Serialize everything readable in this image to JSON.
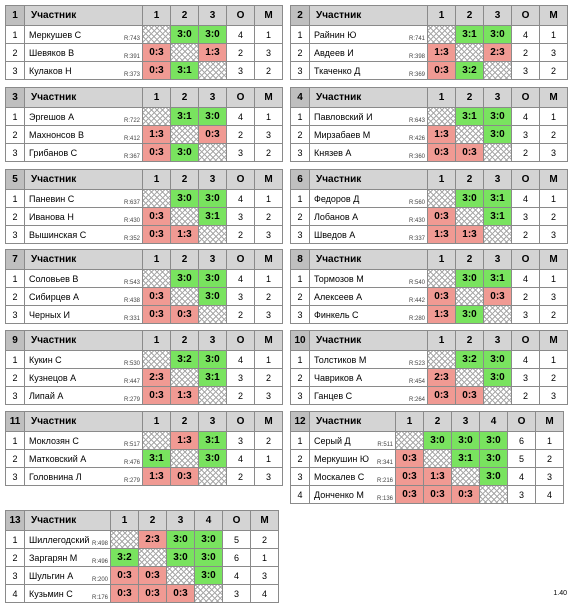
{
  "version": "1.40",
  "groups": [
    {
      "num": "1",
      "header": {
        "title": "Участник",
        "col1": "1",
        "col2": "2",
        "col3": "3",
        "col_o": "О",
        "col_m": "М"
      },
      "rows": [
        {
          "idx": "1",
          "name": "Меркушев С",
          "rating": "R:743",
          "c1": "",
          "c2": "3:0",
          "c3": "3:0",
          "o": "4",
          "m": "1"
        },
        {
          "idx": "2",
          "name": "Шевяков В",
          "rating": "R:391",
          "c1": "0:3",
          "c2": "",
          "c3": "1:3",
          "o": "2",
          "m": "3"
        },
        {
          "idx": "3",
          "name": "Кулаков Н",
          "rating": "R:373",
          "c1": "0:3",
          "c2": "3:1",
          "c3": "",
          "o": "3",
          "m": "2"
        }
      ]
    },
    {
      "num": "2",
      "header": {
        "title": "Участник",
        "col1": "1",
        "col2": "2",
        "col3": "3",
        "col_o": "О",
        "col_m": "М"
      },
      "rows": [
        {
          "idx": "1",
          "name": "Райнин Ю",
          "rating": "R:741",
          "c1": "",
          "c2": "3:1",
          "c3": "3:0",
          "o": "4",
          "m": "1"
        },
        {
          "idx": "2",
          "name": "Авдеев И",
          "rating": "R:398",
          "c1": "1:3",
          "c2": "",
          "c3": "2:3",
          "o": "2",
          "m": "3"
        },
        {
          "idx": "3",
          "name": "Ткаченко Д",
          "rating": "R:369",
          "c1": "0:3",
          "c2": "3:2",
          "c3": "",
          "o": "3",
          "m": "2"
        }
      ]
    },
    {
      "num": "3",
      "header": {
        "title": "Участник",
        "col1": "1",
        "col2": "2",
        "col3": "3",
        "col_o": "О",
        "col_m": "М"
      },
      "rows": [
        {
          "idx": "1",
          "name": "Эргешов А",
          "rating": "R:722",
          "c1": "",
          "c2": "3:1",
          "c3": "3:0",
          "o": "4",
          "m": "1"
        },
        {
          "idx": "2",
          "name": "Махнонсов В",
          "rating": "R:412",
          "c1": "1:3",
          "c2": "",
          "c3": "0:3",
          "o": "2",
          "m": "3"
        },
        {
          "idx": "3",
          "name": "Грибанов С",
          "rating": "R:367",
          "c1": "0:3",
          "c2": "3:0",
          "c3": "",
          "o": "3",
          "m": "2"
        }
      ]
    },
    {
      "num": "4",
      "header": {
        "title": "Участник",
        "col1": "1",
        "col2": "2",
        "col3": "3",
        "col_o": "О",
        "col_m": "М"
      },
      "rows": [
        {
          "idx": "1",
          "name": "Павловский И",
          "rating": "R:643",
          "c1": "",
          "c2": "3:1",
          "c3": "3:0",
          "o": "4",
          "m": "1"
        },
        {
          "idx": "2",
          "name": "Мирзабаев М",
          "rating": "R:426",
          "c1": "1:3",
          "c2": "",
          "c3": "3:0",
          "o": "3",
          "m": "2"
        },
        {
          "idx": "3",
          "name": "Князев А",
          "rating": "R:360",
          "c1": "0:3",
          "c2": "0:3",
          "c3": "",
          "o": "2",
          "m": "3"
        }
      ]
    },
    {
      "num": "5",
      "header": {
        "title": "Участник",
        "col1": "1",
        "col2": "2",
        "col3": "3",
        "col_o": "О",
        "col_m": "М"
      },
      "rows": [
        {
          "idx": "1",
          "name": "Паневин С",
          "rating": "R:637",
          "c1": "",
          "c2": "3:0",
          "c3": "3:0",
          "o": "4",
          "m": "1"
        },
        {
          "idx": "2",
          "name": "Иванова Н",
          "rating": "R:430",
          "c1": "0:3",
          "c2": "",
          "c3": "3:1",
          "o": "3",
          "m": "2"
        },
        {
          "idx": "3",
          "name": "Вышинская С",
          "rating": "R:352",
          "c1": "0:3",
          "c2": "1:3",
          "c3": "",
          "o": "2",
          "m": "3"
        }
      ]
    },
    {
      "num": "6",
      "header": {
        "title": "Участник",
        "col1": "1",
        "col2": "2",
        "col3": "3",
        "col_o": "О",
        "col_m": "М"
      },
      "rows": [
        {
          "idx": "1",
          "name": "Федоров Д",
          "rating": "R:560",
          "c1": "",
          "c2": "3:0",
          "c3": "3:1",
          "o": "4",
          "m": "1"
        },
        {
          "idx": "2",
          "name": "Лобанов А",
          "rating": "R:430",
          "c1": "0:3",
          "c2": "",
          "c3": "3:1",
          "o": "3",
          "m": "2"
        },
        {
          "idx": "3",
          "name": "Шведов А",
          "rating": "R:337",
          "c1": "1:3",
          "c2": "1:3",
          "c3": "",
          "o": "2",
          "m": "3"
        }
      ]
    },
    {
      "num": "7",
      "header": {
        "title": "Участник",
        "col1": "1",
        "col2": "2",
        "col3": "3",
        "col_o": "О",
        "col_m": "М"
      },
      "rows": [
        {
          "idx": "1",
          "name": "Соловьев В",
          "rating": "R:543",
          "c1": "",
          "c2": "3:0",
          "c3": "3:0",
          "o": "4",
          "m": "1"
        },
        {
          "idx": "2",
          "name": "Сибирцев А",
          "rating": "R:438",
          "c1": "0:3",
          "c2": "",
          "c3": "3:0",
          "o": "3",
          "m": "2"
        },
        {
          "idx": "3",
          "name": "Черных И",
          "rating": "R:331",
          "c1": "0:3",
          "c2": "0:3",
          "c3": "",
          "o": "2",
          "m": "3"
        }
      ]
    },
    {
      "num": "8",
      "header": {
        "title": "Участник",
        "col1": "1",
        "col2": "2",
        "col3": "3",
        "col_o": "О",
        "col_m": "М"
      },
      "rows": [
        {
          "idx": "1",
          "name": "Тормозов М",
          "rating": "R:540",
          "c1": "",
          "c2": "3:0",
          "c3": "3:1",
          "o": "4",
          "m": "1"
        },
        {
          "idx": "2",
          "name": "Алексеев А",
          "rating": "R:442",
          "c1": "0:3",
          "c2": "",
          "c3": "0:3",
          "o": "2",
          "m": "3"
        },
        {
          "idx": "3",
          "name": "Финкель С",
          "rating": "R:280",
          "c1": "1:3",
          "c2": "3:0",
          "c3": "",
          "o": "3",
          "m": "2"
        }
      ]
    },
    {
      "num": "9",
      "header": {
        "title": "Участник",
        "col1": "1",
        "col2": "2",
        "col3": "3",
        "col_o": "О",
        "col_m": "М"
      },
      "rows": [
        {
          "idx": "1",
          "name": "Кукин С",
          "rating": "R:530",
          "c1": "",
          "c2": "3:2",
          "c3": "3:0",
          "o": "4",
          "m": "1"
        },
        {
          "idx": "2",
          "name": "Кузнецов А",
          "rating": "R:447",
          "c1": "2:3",
          "c2": "",
          "c3": "3:1",
          "o": "3",
          "m": "2"
        },
        {
          "idx": "3",
          "name": "Липай А",
          "rating": "R:279",
          "c1": "0:3",
          "c2": "1:3",
          "c3": "",
          "o": "2",
          "m": "3"
        }
      ]
    },
    {
      "num": "10",
      "header": {
        "title": "Участник",
        "col1": "1",
        "col2": "2",
        "col3": "3",
        "col_o": "О",
        "col_m": "М"
      },
      "rows": [
        {
          "idx": "1",
          "name": "Толстиков М",
          "rating": "R:523",
          "c1": "",
          "c2": "3:2",
          "c3": "3:0",
          "o": "4",
          "m": "1"
        },
        {
          "idx": "2",
          "name": "Чавриков А",
          "rating": "R:454",
          "c1": "2:3",
          "c2": "",
          "c3": "3:0",
          "o": "3",
          "m": "2"
        },
        {
          "idx": "3",
          "name": "Ганцев С",
          "rating": "R:264",
          "c1": "0:3",
          "c2": "0:3",
          "c3": "",
          "o": "2",
          "m": "3"
        }
      ]
    },
    {
      "num": "11",
      "header": {
        "title": "Участник",
        "col1": "1",
        "col2": "2",
        "col3": "3",
        "col_o": "О",
        "col_m": "М"
      },
      "rows": [
        {
          "idx": "1",
          "name": "Моклозян С",
          "rating": "R:517",
          "c1": "",
          "c2": "1:3",
          "c3": "3:1",
          "o": "3",
          "m": "2"
        },
        {
          "idx": "2",
          "name": "Матковский А",
          "rating": "R:476",
          "c1": "3:1",
          "c2": "",
          "c3": "3:0",
          "o": "4",
          "m": "1"
        },
        {
          "idx": "3",
          "name": "Головнина Л",
          "rating": "R:279",
          "c1": "1:3",
          "c2": "0:3",
          "c3": "",
          "o": "2",
          "m": "3"
        }
      ]
    },
    {
      "num": "12",
      "header": {
        "title": "Участник",
        "col1": "1",
        "col2": "2",
        "col3": "3",
        "col4": "4",
        "col_o": "О",
        "col_m": "М"
      },
      "rows": [
        {
          "idx": "1",
          "name": "Серый Д",
          "rating": "R:511",
          "c1": "",
          "c2": "3:0",
          "c3": "3:0",
          "c4": "3:0",
          "o": "6",
          "m": "1"
        },
        {
          "idx": "2",
          "name": "Меркушин Ю",
          "rating": "R:341",
          "c1": "0:3",
          "c2": "",
          "c3": "3:1",
          "c4": "3:0",
          "o": "5",
          "m": "2"
        },
        {
          "idx": "3",
          "name": "Москалев С",
          "rating": "R:216",
          "c1": "0:3",
          "c2": "1:3",
          "c3": "",
          "c4": "3:0",
          "o": "4",
          "m": "3"
        },
        {
          "idx": "4",
          "name": "Донченко М",
          "rating": "R:136",
          "c1": "0:3",
          "c2": "0:3",
          "c3": "0:3",
          "c4": "",
          "o": "3",
          "m": "4"
        }
      ]
    },
    {
      "num": "13",
      "header": {
        "title": "Участник",
        "col1": "1",
        "col2": "2",
        "col3": "3",
        "col4": "4",
        "col_o": "О",
        "col_m": "М"
      },
      "rows": [
        {
          "idx": "1",
          "name": "Шиллегодский",
          "rating": "R:498",
          "c1": "",
          "c2": "2:3",
          "c3": "3:0",
          "c4": "3:0",
          "o": "5",
          "m": "2"
        },
        {
          "idx": "2",
          "name": "Заргарян М",
          "rating": "R:496",
          "c1": "3:2",
          "c2": "",
          "c3": "3:0",
          "c4": "3:0",
          "o": "6",
          "m": "1"
        },
        {
          "idx": "3",
          "name": "Шульгин А",
          "rating": "R:200",
          "c1": "0:3",
          "c2": "0:3",
          "c3": "",
          "c4": "3:0",
          "o": "4",
          "m": "3"
        },
        {
          "idx": "4",
          "name": "Кузьмин С",
          "rating": "R:176",
          "c1": "0:3",
          "c2": "0:3",
          "c3": "0:3",
          "c4": "",
          "o": "3",
          "m": "4"
        }
      ]
    }
  ]
}
